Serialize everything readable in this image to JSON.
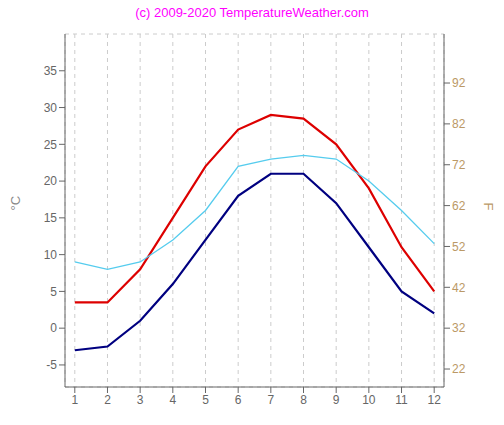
{
  "chart_data": {
    "type": "line",
    "title": "(c) 2009-2020 TemperatureWeather.com",
    "x": [
      1,
      2,
      3,
      4,
      5,
      6,
      7,
      8,
      9,
      10,
      11,
      12
    ],
    "xlim": [
      0.7,
      12.3
    ],
    "xticks": [
      1,
      2,
      3,
      4,
      5,
      6,
      7,
      8,
      9,
      10,
      11,
      12
    ],
    "ylabel": "°C",
    "ylim": [
      -8,
      40
    ],
    "yticks": [
      -5,
      0,
      5,
      10,
      15,
      20,
      25,
      30,
      35
    ],
    "y2label": "F",
    "y2lim": [
      17.6,
      104
    ],
    "y2ticks": [
      22,
      32,
      42,
      52,
      62,
      72,
      82,
      92
    ],
    "grid": true,
    "series": [
      {
        "color": "#dd0000",
        "values": [
          3.5,
          3.5,
          8.0,
          15.0,
          22.0,
          27.0,
          29.0,
          28.5,
          25.0,
          19.0,
          11.0,
          5.0
        ]
      },
      {
        "color": "#000080",
        "values": [
          -3.0,
          -2.5,
          1.0,
          6.0,
          12.0,
          18.0,
          21.0,
          21.0,
          17.0,
          11.0,
          5.0,
          2.0
        ]
      },
      {
        "color": "#55ccee",
        "values": [
          9.0,
          8.0,
          9.0,
          12.0,
          16.0,
          22.0,
          23.0,
          23.5,
          23.0,
          20.0,
          16.0,
          11.5
        ]
      }
    ]
  }
}
